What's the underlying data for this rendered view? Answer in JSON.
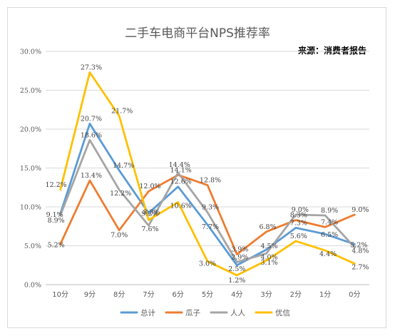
{
  "chart_data": {
    "type": "line",
    "title": "二手车电商平台NPS推荐率",
    "source": "来源：消费者报告",
    "categories": [
      "10分",
      "9分",
      "8分",
      "7分",
      "6分",
      "5分",
      "4分",
      "3分",
      "2分",
      "1分",
      "0分"
    ],
    "ylim": [
      0,
      30
    ],
    "yticks": [
      "0.0%",
      "5.0%",
      "10.0%",
      "15.0%",
      "20.0%",
      "25.0%",
      "30.0%"
    ],
    "ytick_values": [
      0,
      5,
      10,
      15,
      20,
      25,
      30
    ],
    "grid": true,
    "legend_position": "bottom",
    "series": [
      {
        "name": "总计",
        "color": "#5b9bd5",
        "values": [
          9.1,
          20.7,
          14.7,
          9.2,
          12.6,
          7.7,
          2.5,
          4.5,
          7.3,
          6.5,
          5.2
        ],
        "labels": [
          "9.1%",
          "20.7%",
          "14.7%",
          "9.2%",
          "12.6%",
          "7.7%",
          "2.5%",
          "4.5%",
          "7.3%",
          "6.5%",
          "5.2%"
        ]
      },
      {
        "name": "瓜子",
        "color": "#ed7d31",
        "values": [
          5.2,
          13.4,
          7.0,
          12.0,
          14.1,
          12.8,
          3.9,
          6.8,
          8.3,
          7.4,
          9.0
        ],
        "labels": [
          "5.2%",
          "13.4%",
          "7.0%",
          "12.0%",
          "14.1%",
          "12.8%",
          "3.9%",
          "6.8%",
          "8.3%",
          "7.4%",
          "9.0%"
        ]
      },
      {
        "name": "人人",
        "color": "#a5a5a5",
        "values": [
          8.9,
          18.6,
          12.2,
          7.6,
          14.4,
          9.3,
          2.9,
          4.0,
          9.0,
          8.9,
          4.8
        ],
        "labels": [
          "8.9%",
          "18.6%",
          "12.2%",
          "7.6%",
          "14.4%",
          "9.3%",
          "2.9%",
          "4.0%",
          "9.0%",
          "8.9%",
          "4.8%"
        ]
      },
      {
        "name": "优信",
        "color": "#ffc000",
        "values": [
          12.2,
          27.3,
          21.7,
          8.3,
          10.6,
          3.0,
          1.2,
          3.1,
          5.6,
          4.4,
          2.7
        ],
        "labels": [
          "12.2%",
          "27.3%",
          "21.7%",
          "8.3%",
          "10.6%",
          "3.0%",
          "1.2%",
          "3.1%",
          "5.6%",
          "4.4%",
          "2.7%"
        ]
      }
    ]
  }
}
